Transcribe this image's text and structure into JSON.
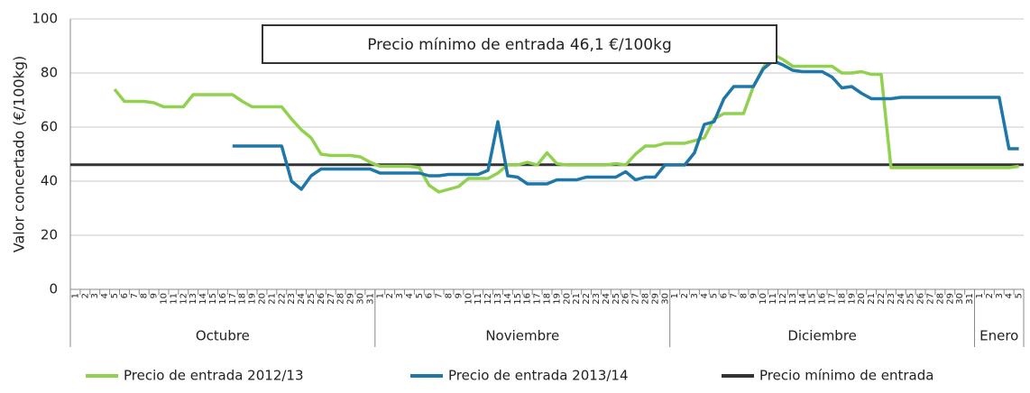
{
  "chart_data": {
    "type": "line",
    "y_label": "Valor concertado (€/100kg)",
    "annotation": "Precio mínimo de entrada 46,1 €/100kg",
    "categories": [
      "1",
      "2",
      "3",
      "4",
      "5",
      "6",
      "7",
      "8",
      "9",
      "10",
      "11",
      "12",
      "13",
      "14",
      "15",
      "16",
      "17",
      "18",
      "19",
      "20",
      "21",
      "22",
      "23",
      "24",
      "25",
      "26",
      "27",
      "28",
      "29",
      "30",
      "31",
      "1",
      "2",
      "3",
      "4",
      "5",
      "6",
      "7",
      "8",
      "9",
      "10",
      "11",
      "12",
      "13",
      "14",
      "15",
      "16",
      "17",
      "18",
      "19",
      "20",
      "21",
      "22",
      "23",
      "24",
      "25",
      "26",
      "27",
      "28",
      "29",
      "30",
      "1",
      "2",
      "3",
      "4",
      "5",
      "6",
      "7",
      "8",
      "9",
      "10",
      "11",
      "12",
      "13",
      "14",
      "15",
      "16",
      "17",
      "18",
      "19",
      "20",
      "21",
      "22",
      "23",
      "24",
      "25",
      "26",
      "27",
      "28",
      "29",
      "30",
      "31",
      "1",
      "2",
      "3",
      "4",
      "5"
    ],
    "groups": [
      {
        "label": "Octubre",
        "count": 31
      },
      {
        "label": "Noviembre",
        "count": 30
      },
      {
        "label": "Diciembre",
        "count": 31
      },
      {
        "label": "Enero",
        "count": 5
      }
    ],
    "series": [
      {
        "name": "Precio de entrada 2012/13",
        "color": "#92d050",
        "values": [
          null,
          null,
          null,
          null,
          74,
          69.5,
          69.5,
          69.5,
          69,
          67.5,
          67.5,
          67.5,
          72,
          72,
          72,
          72,
          72,
          69.5,
          67.5,
          67.5,
          67.5,
          67.5,
          63,
          59,
          56,
          50,
          49.5,
          49.5,
          49.5,
          49,
          47,
          45.5,
          45.5,
          45.5,
          45.5,
          45,
          38.5,
          36,
          37,
          38,
          41,
          41,
          41,
          43,
          46,
          46,
          47,
          46,
          50.5,
          46.5,
          46,
          46,
          46,
          46,
          46,
          46.5,
          46,
          50,
          53,
          53,
          54,
          54,
          54,
          55,
          56,
          63,
          65,
          65,
          65,
          75,
          82,
          87,
          85,
          82.5,
          82.5,
          82.5,
          82.5,
          82.5,
          80,
          80,
          80.5,
          79.5,
          79.5,
          45,
          45,
          45,
          45,
          45,
          45,
          45,
          45,
          45,
          45,
          45,
          45,
          45,
          45.5
        ]
      },
      {
        "name": "Precio de entrada 2013/14",
        "color": "#1f77a8",
        "values": [
          null,
          null,
          null,
          null,
          null,
          null,
          null,
          null,
          null,
          null,
          null,
          null,
          null,
          null,
          null,
          null,
          53,
          53,
          53,
          53,
          53,
          53,
          40,
          37,
          42,
          44.5,
          44.5,
          44.5,
          44.5,
          44.5,
          44.5,
          43,
          43,
          43,
          43,
          43,
          42,
          42,
          42.5,
          42.5,
          42.5,
          42.5,
          44,
          62,
          42,
          41.5,
          39,
          39,
          39,
          40.5,
          40.5,
          40.5,
          41.5,
          41.5,
          41.5,
          41.5,
          43.5,
          40.5,
          41.5,
          41.5,
          46,
          46,
          46,
          50.5,
          61,
          62,
          70.5,
          75,
          75,
          75,
          81.5,
          84.5,
          83,
          81,
          80.5,
          80.5,
          80.5,
          78.5,
          74.5,
          75,
          72.5,
          70.5,
          70.5,
          70.5,
          71,
          71,
          71,
          71,
          71,
          71,
          71,
          71,
          71,
          71,
          71,
          52,
          52
        ]
      }
    ],
    "reference_lines": [
      {
        "name": "Precio mínimo de entrada",
        "value": 46.1,
        "color": "#333333"
      }
    ],
    "ylim": [
      0,
      100
    ],
    "yticks": [
      0,
      20,
      40,
      60,
      80,
      100
    ],
    "grid": true,
    "legend": "bottom"
  }
}
